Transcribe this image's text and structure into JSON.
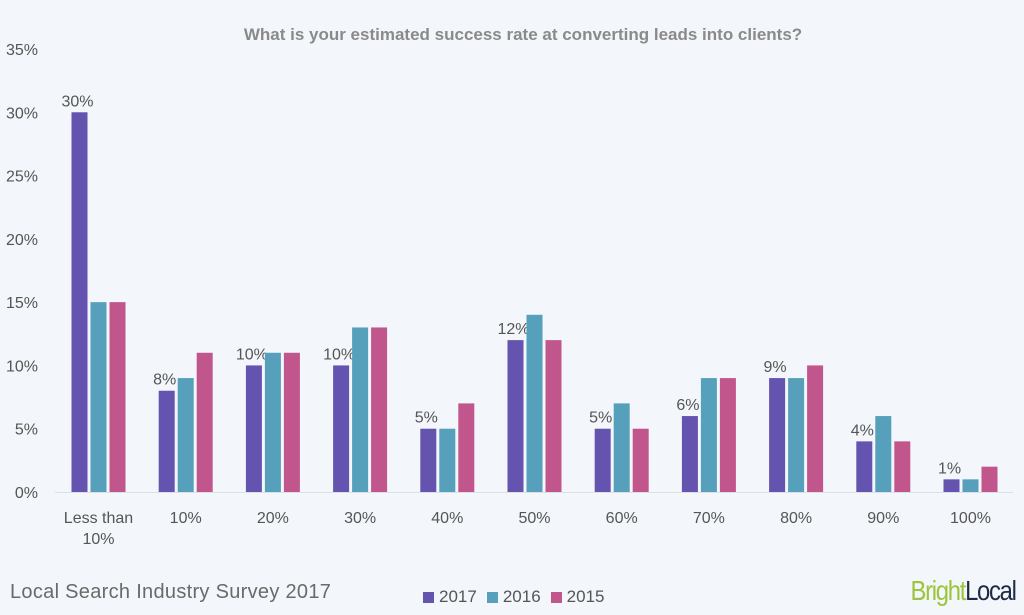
{
  "chart_data": {
    "type": "bar",
    "title": "What is your estimated success rate at converting leads into clients?",
    "xlabel": "",
    "ylabel": "",
    "ylim": [
      0,
      35
    ],
    "yticks": [
      "0%",
      "5%",
      "10%",
      "15%",
      "20%",
      "25%",
      "30%",
      "35%"
    ],
    "grid": false,
    "legend_position": "bottom",
    "categories": [
      "Less than 10%",
      "10%",
      "20%",
      "30%",
      "40%",
      "50%",
      "60%",
      "70%",
      "80%",
      "90%",
      "100%"
    ],
    "series": [
      {
        "name": "2017",
        "color": "#6553b0",
        "values": [
          30,
          8,
          10,
          10,
          5,
          12,
          5,
          6,
          9,
          4,
          1
        ],
        "labels": [
          "30%",
          "8%",
          "10%",
          "10%",
          "5%",
          "12%",
          "5%",
          "6%",
          "9%",
          "4%",
          "1%"
        ]
      },
      {
        "name": "2016",
        "color": "#56a0bb",
        "values": [
          15,
          9,
          11,
          13,
          5,
          14,
          7,
          9,
          9,
          6,
          1
        ]
      },
      {
        "name": "2015",
        "color": "#c0568c",
        "values": [
          15,
          11,
          11,
          13,
          7,
          12,
          5,
          9,
          10,
          4,
          2
        ]
      }
    ]
  },
  "footer": {
    "survey_title": "Local Search Industry Survey 2017"
  },
  "logo": {
    "text_bright": "Bright",
    "text_local": "Local"
  }
}
